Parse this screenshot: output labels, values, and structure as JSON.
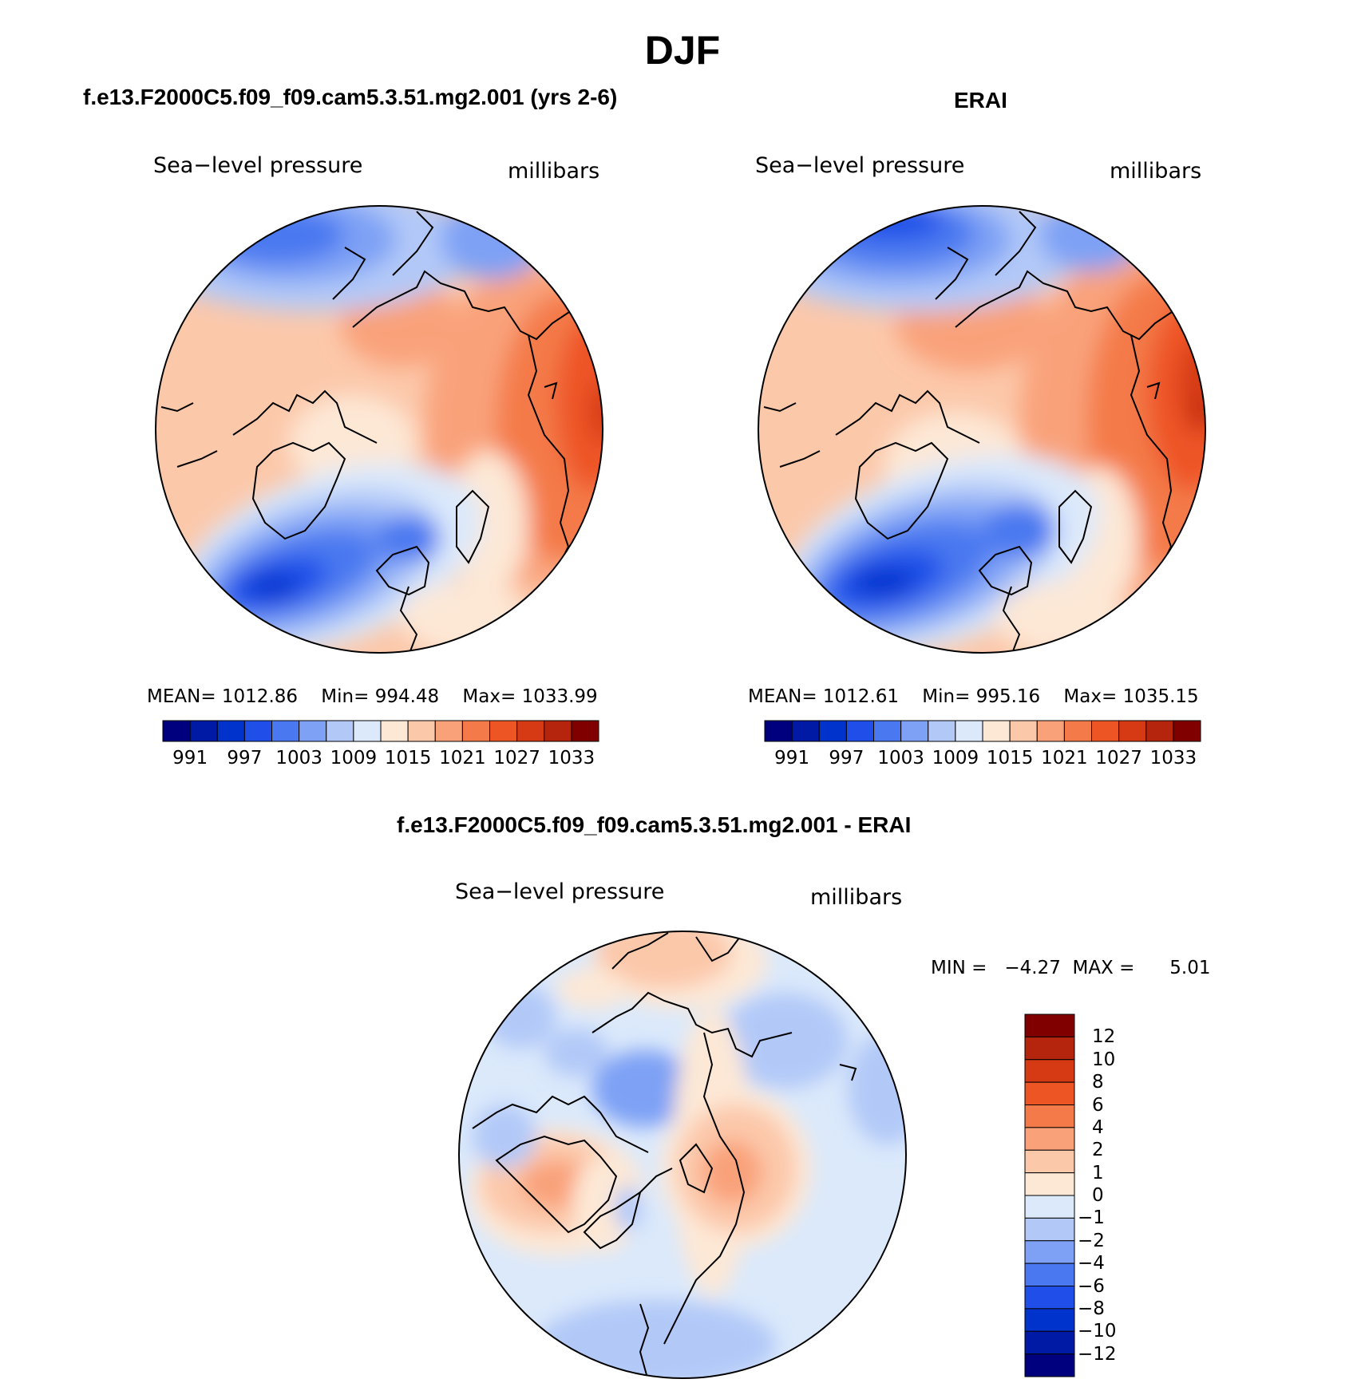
{
  "title": "DJF",
  "panels": [
    {
      "title": "f.e13.F2000C5.f09_f09.cam5.3.51.mg2.001 (yrs 2-6)",
      "variable": "Sea−level pressure",
      "units": "millibars",
      "stats": {
        "mean_label": "MEAN=",
        "mean": "1012.86",
        "min_label": "Min=",
        "min": "994.48",
        "max_label": "Max=",
        "max": "1033.99"
      }
    },
    {
      "title": "ERAI",
      "variable": "Sea−level pressure",
      "units": "millibars",
      "stats": {
        "mean_label": "MEAN=",
        "mean": "1012.61",
        "min_label": "Min=",
        "min": "995.16",
        "max_label": "Max=",
        "max": "1035.15"
      }
    }
  ],
  "diff": {
    "title": "f.e13.F2000C5.f09_f09.cam5.3.51.mg2.001 - ERAI",
    "variable": "Sea−level pressure",
    "units": "millibars",
    "min_label": "MIN =",
    "min": "−4.27",
    "max_label": "MAX =",
    "max": "5.01"
  },
  "legend_abs": {
    "colors": [
      "#00007f",
      "#001aa6",
      "#0033cc",
      "#1f4fe8",
      "#4a78f0",
      "#7ea1f5",
      "#b2c9f8",
      "#dbe9fb",
      "#fde8d6",
      "#fcc8aa",
      "#f9a27a",
      "#f47a4a",
      "#ee5525",
      "#d63a14",
      "#b5240c",
      "#800000"
    ],
    "labels": [
      "991",
      "997",
      "1003",
      "1009",
      "1015",
      "1021",
      "1027",
      "1033"
    ]
  },
  "legend_diff": {
    "colors": [
      "#00007f",
      "#001aa6",
      "#0033cc",
      "#1f4fe8",
      "#4a78f0",
      "#7ea1f5",
      "#b2c9f8",
      "#dbe9fb",
      "#fde8d6",
      "#fcc8aa",
      "#f9a27a",
      "#f47a4a",
      "#ee5525",
      "#d63a14",
      "#b5240c",
      "#800000"
    ],
    "labels": [
      "12",
      "10",
      "8",
      "6",
      "4",
      "2",
      "1",
      "0",
      "−1",
      "−2",
      "−4",
      "−6",
      "−8",
      "−10",
      "−12"
    ]
  }
}
